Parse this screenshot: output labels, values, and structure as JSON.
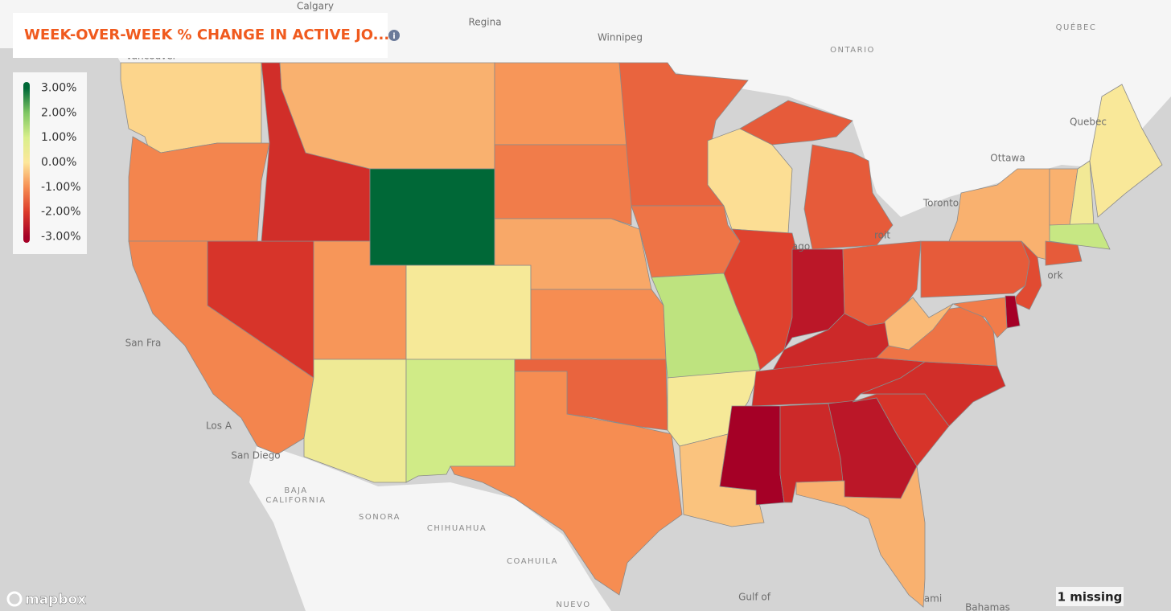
{
  "chart_data": {
    "type": "choropleth",
    "title": "WEEK-OVER-WEEK % CHANGE IN ACTIVE JO...",
    "values": [
      -0.2,
      -1.1,
      -1.1,
      -2.1,
      -2.2,
      -0.6,
      3.0,
      -0.9,
      0.2,
      0.4,
      1.1,
      -0.9,
      -1.2,
      -0.7,
      -1.0,
      -1.5,
      -1.0,
      -1.5,
      -1.3,
      1.3,
      0.2,
      -0.4,
      -0.1,
      -1.9,
      -1.6,
      -2.6,
      -1.6,
      -2.3,
      -2.2,
      -3.0,
      -2.3,
      -2.6,
      -0.6,
      -2.1,
      -2.2,
      -1.3,
      -0.5,
      -1.6,
      -0.6,
      -0.6,
      0.3,
      0.1,
      1.2,
      -1.6,
      -1.8,
      -3.0,
      -1.2
    ],
    "legend": {
      "range": [
        -3.25,
        3.25
      ],
      "ticks": [
        {
          "value": -3,
          "label": "-3.00%"
        },
        {
          "value": -2,
          "label": "-2.00%"
        },
        {
          "value": -1,
          "label": "-1.00%"
        },
        {
          "value": 0,
          "label": "0.00%"
        },
        {
          "value": 1,
          "label": "1.00%"
        },
        {
          "value": 2,
          "label": "2.00%"
        },
        {
          "value": 3,
          "label": "3.00%"
        }
      ],
      "colors": [
        "#a50026",
        "#dc3a2a",
        "#f68d52",
        "#fde79b",
        "#d9ef8b",
        "#7fc763",
        "#006837"
      ]
    },
    "missing_label": "1 missing",
    "attribution": "mapbox",
    "basemap_labels": [
      "Calgary",
      "Regina",
      "Winnipeg",
      "Vancouver",
      "ONTARIO",
      "QUÉBEC",
      "Quebec",
      "Ottawa",
      "Toronto",
      "San Fra",
      "Los A",
      "San Diego",
      "BAJA",
      "CALIFORNIA",
      "SONORA",
      "CHIHUAHUA",
      "COAHUILA",
      "NUEVO",
      "Gulf of",
      "Bahamas",
      "ork",
      "roit",
      "ago",
      "ami"
    ]
  }
}
